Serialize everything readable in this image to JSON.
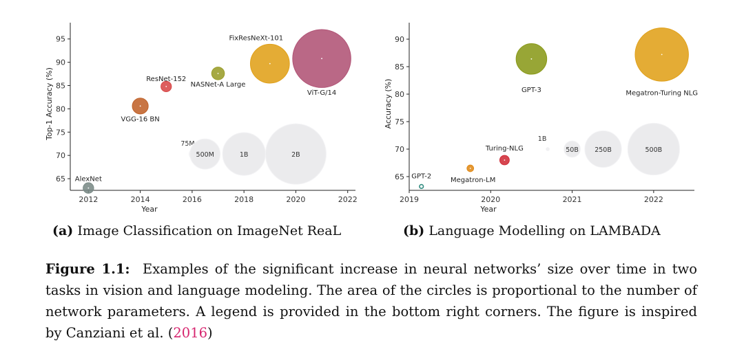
{
  "subcaptions": [
    {
      "label": "(a)",
      "text": "Image Classification on ImageNet ReaL"
    },
    {
      "label": "(b)",
      "text": "Language Modelling on LAMBADA"
    }
  ],
  "caption": {
    "label": "Figure 1.1:",
    "text": "Examples of the significant increase in neural networks’ size over time in two tasks in vision and language modeling. The area of the circles is proportional to the number of network parameters. A legend is provided in the bottom right corners. The figure is inspired by Canziani et al. (",
    "cite": "2016",
    "close": ")"
  },
  "chart_data": [
    {
      "type": "scatter",
      "title": "Image Classification on ImageNet ReaL",
      "xlabel": "Year",
      "ylabel": "Top-1 Accuracy (%)",
      "xlim": [
        2011.3,
        2022.3
      ],
      "ylim": [
        62.5,
        98.5
      ],
      "xticks": [
        2012,
        2014,
        2016,
        2018,
        2020,
        2022
      ],
      "yticks": [
        65,
        70,
        75,
        80,
        85,
        90,
        95
      ],
      "points": [
        {
          "name": "AlexNet",
          "x": 2012,
          "y": 63.0,
          "params_millions": 61,
          "color": "#7a8a86"
        },
        {
          "name": "VGG-16 BN",
          "x": 2014,
          "y": 80.6,
          "params_millions": 138,
          "color": "#c0622a"
        },
        {
          "name": "ResNet-152",
          "x": 2015,
          "y": 84.8,
          "params_millions": 60,
          "color": "#d84848"
        },
        {
          "name": "NASNet-A Large",
          "x": 2017,
          "y": 87.6,
          "params_millions": 89,
          "color": "#9a9d2a"
        },
        {
          "name": "FixResNeXt-101",
          "x": 2019,
          "y": 89.7,
          "params_millions": 829,
          "color": "#e0a019"
        },
        {
          "name": "ViT-G/14",
          "x": 2021,
          "y": 90.8,
          "params_millions": 1843,
          "color": "#b15375"
        }
      ],
      "legend": {
        "position": "bottom-right",
        "entries": [
          {
            "label": "75M",
            "params_millions": 75
          },
          {
            "label": "500M",
            "params_millions": 500
          },
          {
            "label": "1B",
            "params_millions": 1000
          },
          {
            "label": "2B",
            "params_millions": 2000
          }
        ]
      }
    },
    {
      "type": "scatter",
      "title": "Language Modelling on LAMBADA",
      "xlabel": "Year",
      "ylabel": "Accuracy (%)",
      "xlim": [
        2019.0,
        2022.5
      ],
      "ylim": [
        62.5,
        93.0
      ],
      "xticks": [
        2019,
        2020,
        2021,
        2022
      ],
      "yticks": [
        65,
        70,
        75,
        80,
        85,
        90
      ],
      "points": [
        {
          "name": "GPT-2",
          "x": 2019.15,
          "y": 63.2,
          "params_billions": 1.5,
          "color": "#2f8a7e"
        },
        {
          "name": "Megatron-LM",
          "x": 2019.75,
          "y": 66.5,
          "params_billions": 8.3,
          "color": "#e08a18"
        },
        {
          "name": "Turing-NLG",
          "x": 2020.17,
          "y": 68.0,
          "params_billions": 17,
          "color": "#d02c38"
        },
        {
          "name": "GPT-3",
          "x": 2020.5,
          "y": 86.4,
          "params_billions": 175,
          "color": "#8a9a1a"
        },
        {
          "name": "Megatron-Turing NLG",
          "x": 2022.1,
          "y": 87.2,
          "params_billions": 530,
          "color": "#e0a019"
        }
      ],
      "legend": {
        "position": "bottom-right",
        "entries": [
          {
            "label": "1B",
            "params_billions": 1
          },
          {
            "label": "50B",
            "params_billions": 50
          },
          {
            "label": "250B",
            "params_billions": 250
          },
          {
            "label": "500B",
            "params_billions": 500
          }
        ]
      }
    }
  ]
}
